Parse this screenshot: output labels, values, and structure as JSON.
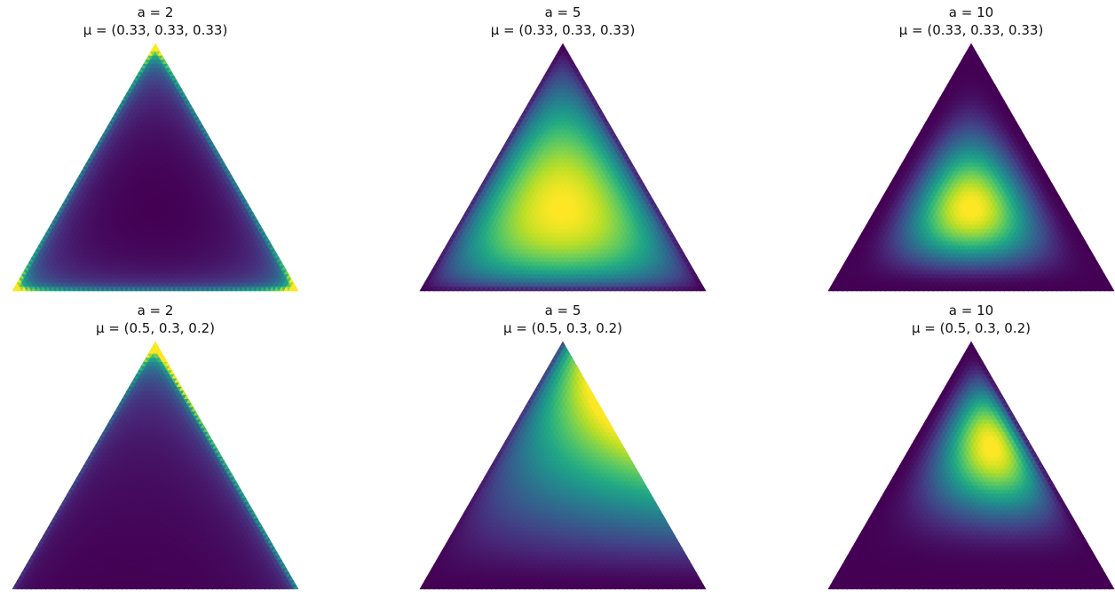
{
  "colors": {
    "colormap": "viridis",
    "low": "#440154",
    "mid": "#21918c",
    "high": "#fde725"
  },
  "chart_data": [
    {
      "type": "heatmap",
      "subtype": "ternary-density",
      "a": 2,
      "mu": [
        0.33,
        0.33,
        0.33
      ],
      "title_line1": "a = 2",
      "title_line2": "μ = (0.33, 0.33, 0.33)",
      "grid": false
    },
    {
      "type": "heatmap",
      "subtype": "ternary-density",
      "a": 5,
      "mu": [
        0.33,
        0.33,
        0.33
      ],
      "title_line1": "a = 5",
      "title_line2": "μ = (0.33, 0.33, 0.33)",
      "grid": false
    },
    {
      "type": "heatmap",
      "subtype": "ternary-density",
      "a": 10,
      "mu": [
        0.33,
        0.33,
        0.33
      ],
      "title_line1": "a = 10",
      "title_line2": "μ = (0.33, 0.33, 0.33)",
      "grid": false
    },
    {
      "type": "heatmap",
      "subtype": "ternary-density",
      "a": 2,
      "mu": [
        0.5,
        0.3,
        0.2
      ],
      "title_line1": "a = 2",
      "title_line2": "μ = (0.5, 0.3, 0.2)",
      "grid": false
    },
    {
      "type": "heatmap",
      "subtype": "ternary-density",
      "a": 5,
      "mu": [
        0.5,
        0.3,
        0.2
      ],
      "title_line1": "a = 5",
      "title_line2": "μ = (0.5, 0.3, 0.2)",
      "grid": false
    },
    {
      "type": "heatmap",
      "subtype": "ternary-density",
      "a": 10,
      "mu": [
        0.5,
        0.3,
        0.2
      ],
      "title_line1": "a = 10",
      "title_line2": "μ = (0.5, 0.3, 0.2)",
      "grid": false
    }
  ]
}
